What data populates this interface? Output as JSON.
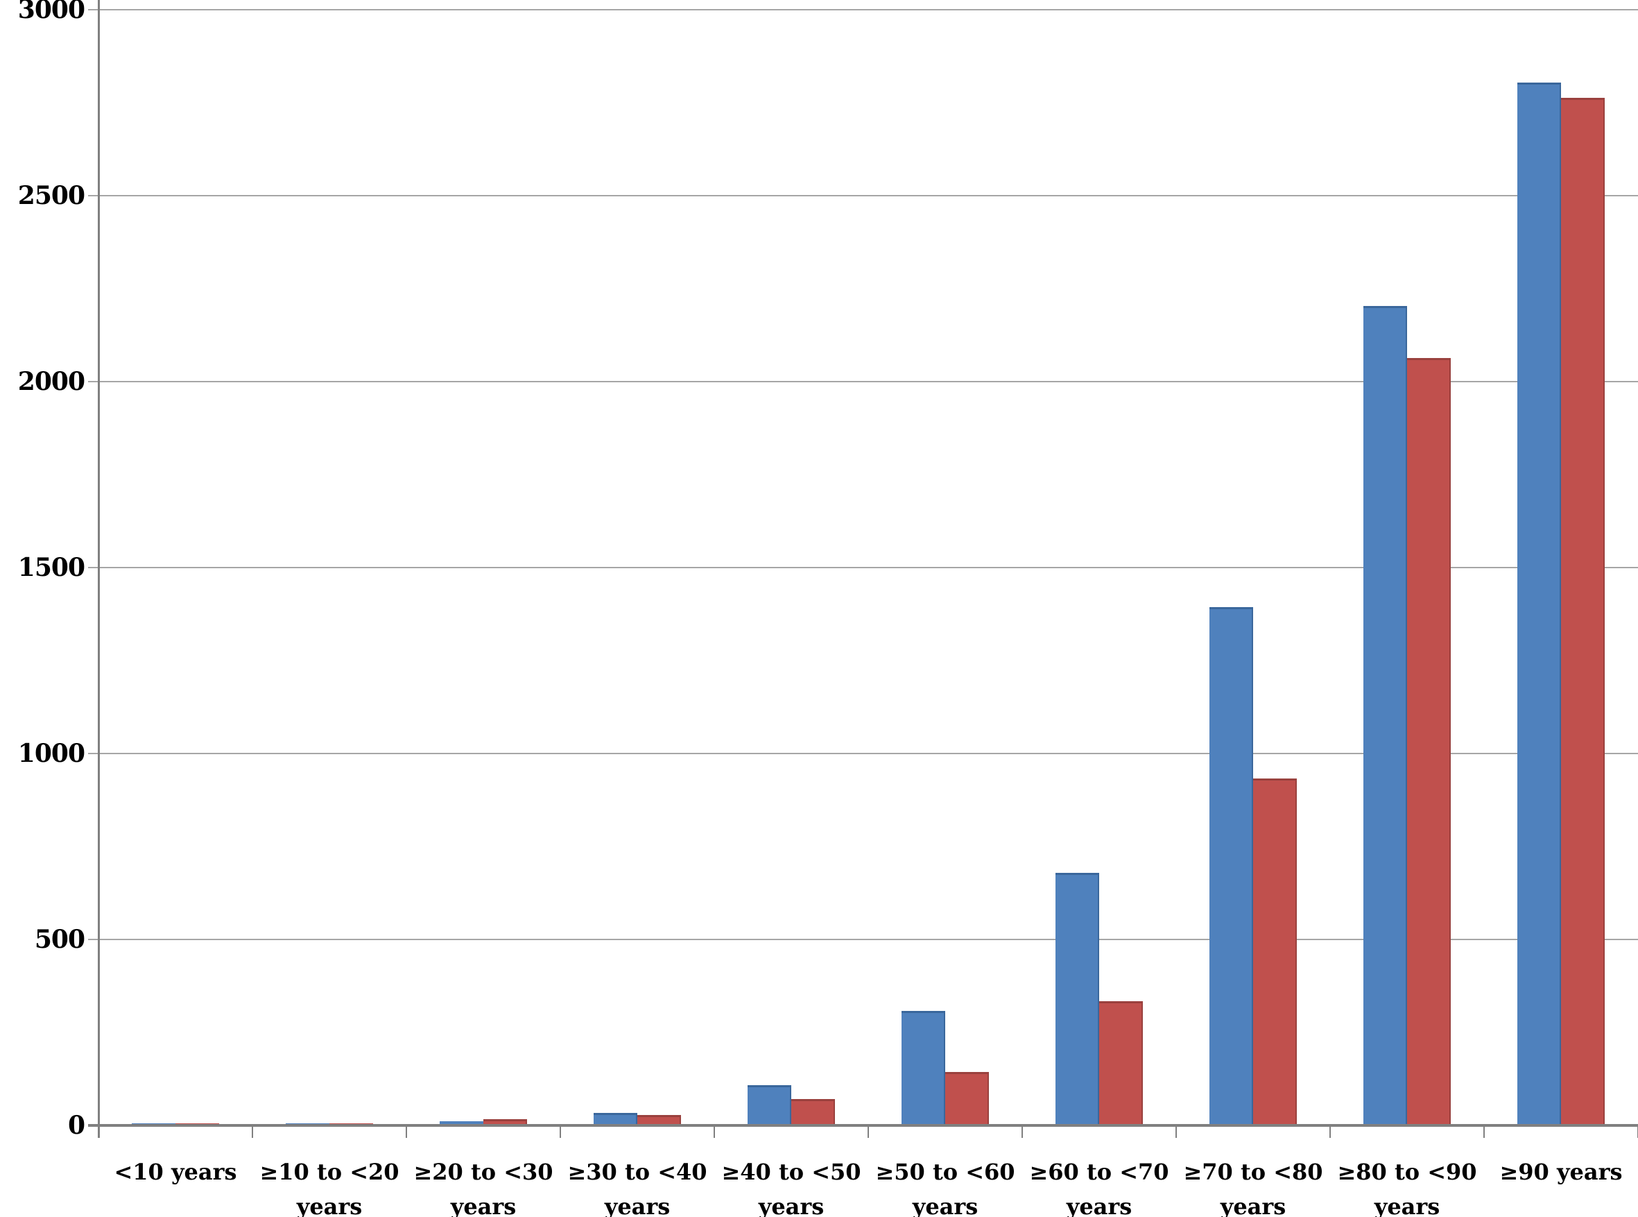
{
  "chart_data": {
    "type": "bar",
    "title": "",
    "xlabel": "",
    "ylabel": "",
    "ylim": [
      0,
      3000
    ],
    "ytick_step": 500,
    "yticks": [
      "0",
      "500",
      "1000",
      "1500",
      "2000",
      "2500",
      "3000"
    ],
    "grid": true,
    "legend_position": "none",
    "categories": [
      {
        "lines": [
          "<10 years"
        ]
      },
      {
        "lines": [
          "≥10 to <20",
          "years"
        ]
      },
      {
        "lines": [
          "≥20 to <30",
          "years"
        ]
      },
      {
        "lines": [
          "≥30 to <40",
          "years"
        ]
      },
      {
        "lines": [
          "≥40 to <50",
          "years"
        ]
      },
      {
        "lines": [
          "≥50 to <60",
          "years"
        ]
      },
      {
        "lines": [
          "≥60 to <70",
          "years"
        ]
      },
      {
        "lines": [
          "≥70 to <80",
          "years"
        ]
      },
      {
        "lines": [
          "≥80 to <90",
          "years"
        ]
      },
      {
        "lines": [
          "≥90 years"
        ]
      }
    ],
    "series": [
      {
        "id": "blue-series",
        "label": "",
        "color": "#4F81BD",
        "edge_color": "#3A679C",
        "values": [
          1,
          2,
          8,
          30,
          105,
          305,
          675,
          1390,
          2200,
          2800
        ]
      },
      {
        "id": "red-series",
        "label": "",
        "color": "#C0504D",
        "edge_color": "#9A413E",
        "values": [
          1,
          2,
          13,
          25,
          68,
          140,
          330,
          930,
          2060,
          2760
        ]
      }
    ],
    "colors": {
      "axis": "#808080",
      "grid": "#A6A6A6",
      "text": "#000000",
      "background": "#FFFFFF"
    }
  }
}
